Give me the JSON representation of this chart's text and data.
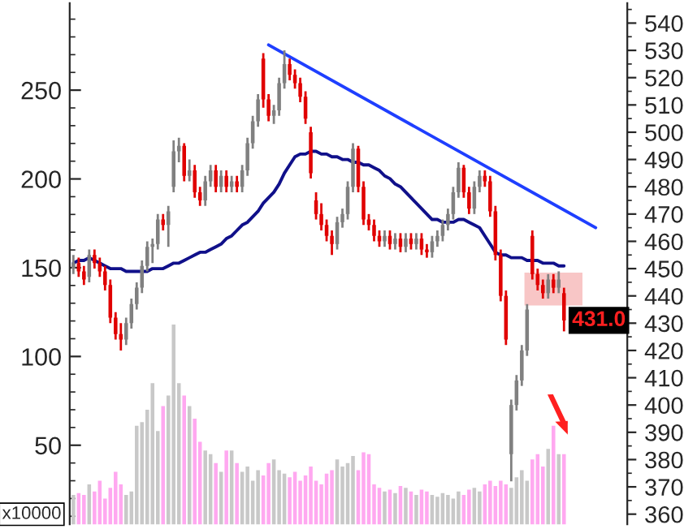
{
  "chart_data": [
    {
      "type": "bar",
      "ylabel": "x10000",
      "categories": [
        null,
        null,
        null,
        null,
        null,
        null,
        null,
        null,
        null,
        null,
        null,
        null,
        null,
        null,
        null,
        null,
        null,
        null,
        null,
        null,
        null,
        null,
        null,
        null,
        null,
        null,
        null,
        null,
        null,
        null,
        null,
        null,
        null,
        null,
        null,
        null,
        null,
        null,
        null,
        null,
        null,
        null,
        null,
        null,
        null,
        null,
        null,
        null,
        null,
        null,
        null,
        null,
        null,
        null,
        null,
        null,
        null,
        null,
        null,
        null,
        null,
        null,
        null,
        null,
        null,
        null,
        null,
        null,
        null,
        null,
        null,
        null,
        null,
        null,
        null,
        null,
        null,
        null,
        null,
        null,
        null,
        null,
        null,
        null,
        null,
        null,
        null,
        null,
        null,
        null,
        null,
        null,
        null,
        null
      ],
      "values": [
        22,
        23,
        22,
        28,
        24,
        30,
        20,
        26,
        35,
        28,
        22,
        24,
        61,
        63,
        70,
        85,
        58,
        72,
        78,
        118,
        85,
        78,
        72,
        65,
        52,
        47,
        45,
        40,
        35,
        47,
        47,
        40,
        35,
        38,
        30,
        36,
        33,
        40,
        42,
        36,
        34,
        32,
        35,
        30,
        33,
        38,
        30,
        28,
        34,
        36,
        42,
        38,
        40,
        44,
        36,
        46,
        45,
        28,
        26,
        24,
        25,
        23,
        27,
        26,
        24,
        22,
        25,
        24,
        22,
        21,
        23,
        22,
        20,
        24,
        22,
        25,
        26,
        24,
        28,
        30,
        27,
        30,
        28,
        26,
        32,
        36,
        30,
        42,
        45,
        38,
        48,
        61,
        45,
        45
      ],
      "colors": [
        "#c8c8c8",
        "#ffa8f0",
        "#ffa8f0",
        "#c8c8c8",
        "#ffa8f0",
        "#ffa8f0",
        "#ffa8f0",
        "#ffa8f0",
        "#ffa8f0",
        "#ffa8f0",
        "#c8c8c8",
        "#c8c8c8",
        "#c8c8c8",
        "#c8c8c8",
        "#c8c8c8",
        "#c8c8c8",
        "#c8c8c8",
        "#ffa8f0",
        "#c8c8c8",
        "#c8c8c8",
        "#c8c8c8",
        "#ffa8f0",
        "#c8c8c8",
        "#ffa8f0",
        "#ffa8f0",
        "#c8c8c8",
        "#c8c8c8",
        "#ffa8f0",
        "#c8c8c8",
        "#ffa8f0",
        "#c8c8c8",
        "#ffa8f0",
        "#c8c8c8",
        "#c8c8c8",
        "#c8c8c8",
        "#c8c8c8",
        "#ffa8f0",
        "#ffa8f0",
        "#c8c8c8",
        "#c8c8c8",
        "#c8c8c8",
        "#ffa8f0",
        "#ffa8f0",
        "#ffa8f0",
        "#ffa8f0",
        "#ffa8f0",
        "#ffa8f0",
        "#ffa8f0",
        "#ffa8f0",
        "#ffa8f0",
        "#c8c8c8",
        "#c8c8c8",
        "#c8c8c8",
        "#c8c8c8",
        "#ffa8f0",
        "#ffa8f0",
        "#ffa8f0",
        "#ffa8f0",
        "#ffa8f0",
        "#c8c8c8",
        "#ffa8f0",
        "#c8c8c8",
        "#ffa8f0",
        "#c8c8c8",
        "#ffa8f0",
        "#c8c8c8",
        "#ffa8f0",
        "#ffa8f0",
        "#c8c8c8",
        "#c8c8c8",
        "#c8c8c8",
        "#c8c8c8",
        "#c8c8c8",
        "#c8c8c8",
        "#ffa8f0",
        "#ffa8f0",
        "#c8c8c8",
        "#c8c8c8",
        "#ffa8f0",
        "#ffa8f0",
        "#ffa8f0",
        "#ffa8f0",
        "#ffa8f0",
        "#c8c8c8",
        "#c8c8c8",
        "#c8c8c8",
        "#c8c8c8",
        "#ffa8f0",
        "#ffa8f0",
        "#ffa8f0",
        "#c8c8c8",
        "#ffa8f0",
        "#c8c8c8",
        "#ffa8f0"
      ],
      "ylim": [
        5.5,
        299
      ],
      "yticks": [
        50,
        100,
        150,
        200,
        250
      ],
      "tick_labels": "y",
      "grid": false,
      "legend": false
    },
    {
      "type": "candlestick",
      "categories": [
        null,
        null,
        null,
        null,
        null,
        null,
        null,
        null,
        null,
        null,
        null,
        null,
        null,
        null,
        null,
        null,
        null,
        null,
        null,
        null,
        null,
        null,
        null,
        null,
        null,
        null,
        null,
        null,
        null,
        null,
        null,
        null,
        null,
        null,
        null,
        null,
        null,
        null,
        null,
        null,
        null,
        null,
        null,
        null,
        null,
        null,
        null,
        null,
        null,
        null,
        null,
        null,
        null,
        null,
        null,
        null,
        null,
        null,
        null,
        null,
        null,
        null,
        null,
        null,
        null,
        null,
        null,
        null,
        null,
        null,
        null,
        null,
        null,
        null,
        null,
        null,
        null,
        null,
        null,
        null,
        null,
        null,
        null,
        null,
        null,
        null,
        null,
        null,
        null,
        null,
        null,
        null,
        null,
        null,
        null,
        null,
        null,
        null,
        null,
        null,
        null,
        null,
        null,
        null,
        null,
        null
      ],
      "ohlc": [
        [
          450,
          455,
          448,
          452
        ],
        [
          452,
          454,
          447,
          449
        ],
        [
          449,
          451,
          444,
          446
        ],
        [
          447,
          457,
          445,
          455
        ],
        [
          455,
          457,
          450,
          452
        ],
        [
          452,
          454,
          447,
          449
        ],
        [
          449,
          451,
          442,
          444
        ],
        [
          444,
          446,
          430,
          432
        ],
        [
          432,
          434,
          424,
          426
        ],
        [
          426,
          430,
          420,
          424
        ],
        [
          424,
          432,
          422,
          430
        ],
        [
          430,
          439,
          428,
          437
        ],
        [
          437,
          445,
          435,
          443
        ],
        [
          443,
          453,
          441,
          451
        ],
        [
          451,
          460,
          449,
          458
        ],
        [
          458,
          461,
          452,
          459
        ],
        [
          459,
          470,
          457,
          468
        ],
        [
          468,
          470,
          464,
          466
        ],
        [
          466,
          473,
          458,
          471
        ],
        [
          480,
          497,
          478,
          493
        ],
        [
          493,
          498,
          489,
          495
        ],
        [
          495,
          496,
          482,
          484
        ],
        [
          484,
          490,
          482,
          486
        ],
        [
          486,
          488,
          476,
          478
        ],
        [
          478,
          480,
          473,
          475
        ],
        [
          475,
          484,
          473,
          482
        ],
        [
          482,
          488,
          480,
          486
        ],
        [
          486,
          488,
          478,
          480
        ],
        [
          480,
          486,
          478,
          484
        ],
        [
          484,
          486,
          478,
          480
        ],
        [
          480,
          484,
          478,
          482
        ],
        [
          482,
          484,
          478,
          480
        ],
        [
          480,
          488,
          478,
          486
        ],
        [
          486,
          498,
          484,
          496
        ],
        [
          496,
          506,
          494,
          504
        ],
        [
          504,
          514,
          502,
          512
        ],
        [
          527,
          529,
          509,
          512
        ],
        [
          512,
          514,
          504,
          506
        ],
        [
          506,
          510,
          503,
          508
        ],
        [
          508,
          520,
          506,
          518
        ],
        [
          518,
          530,
          516,
          525
        ],
        [
          525,
          527,
          519,
          521
        ],
        [
          521,
          523,
          516,
          518
        ],
        [
          518,
          520,
          511,
          513
        ],
        [
          513,
          515,
          503,
          505
        ],
        [
          500,
          502,
          483,
          485
        ],
        [
          475,
          478,
          468,
          470
        ],
        [
          470,
          474,
          464,
          466
        ],
        [
          466,
          468,
          460,
          462
        ],
        [
          462,
          464,
          455,
          459
        ],
        [
          459,
          469,
          457,
          467
        ],
        [
          467,
          472,
          465,
          470
        ],
        [
          470,
          482,
          468,
          480
        ],
        [
          480,
          496,
          478,
          494
        ],
        [
          494,
          495,
          478,
          480
        ],
        [
          480,
          482,
          466,
          468
        ],
        [
          468,
          470,
          464,
          466
        ],
        [
          466,
          468,
          460,
          462
        ],
        [
          462,
          464,
          458,
          460
        ],
        [
          460,
          464,
          458,
          462
        ],
        [
          462,
          464,
          457,
          459
        ],
        [
          459,
          463,
          457,
          461
        ],
        [
          461,
          463,
          456,
          458
        ],
        [
          458,
          463,
          456,
          461
        ],
        [
          461,
          463,
          457,
          459
        ],
        [
          459,
          463,
          457,
          461
        ],
        [
          461,
          463,
          455,
          457
        ],
        [
          457,
          459,
          454,
          456
        ],
        [
          456,
          462,
          454,
          460
        ],
        [
          460,
          464,
          458,
          462
        ],
        [
          462,
          468,
          460,
          466
        ],
        [
          466,
          472,
          464,
          470
        ],
        [
          470,
          480,
          468,
          478
        ],
        [
          478,
          489,
          476,
          487
        ],
        [
          487,
          488,
          476,
          478
        ],
        [
          478,
          480,
          470,
          472
        ],
        [
          472,
          482,
          470,
          480
        ],
        [
          480,
          486,
          478,
          484
        ],
        [
          484,
          486,
          480,
          482
        ],
        [
          482,
          484,
          469,
          471
        ],
        [
          471,
          473,
          453,
          455
        ],
        [
          455,
          457,
          438,
          440
        ],
        [
          440,
          442,
          422,
          424
        ],
        [
          382,
          402,
          372,
          400
        ],
        [
          400,
          411,
          398,
          409
        ],
        [
          409,
          422,
          407,
          420
        ],
        [
          420,
          437,
          418,
          435
        ],
        [
          462,
          464,
          446,
          448
        ],
        [
          448,
          450,
          442,
          444
        ],
        [
          444,
          446,
          439,
          441
        ],
        [
          441,
          448,
          439,
          446
        ],
        [
          446,
          448,
          441,
          443
        ],
        [
          443,
          449,
          441,
          446
        ],
        [
          441,
          443,
          427,
          431
        ],
        null,
        null,
        null,
        null,
        null,
        null,
        null,
        null,
        null,
        null,
        null,
        null
      ],
      "colors": [
        "#808080",
        "#e00000",
        "#e00000",
        "#808080",
        "#e00000",
        "#e00000",
        "#e00000",
        "#e00000",
        "#e00000",
        "#e00000",
        "#808080",
        "#808080",
        "#808080",
        "#808080",
        "#808080",
        "#808080",
        "#808080",
        "#e00000",
        "#808080",
        "#808080",
        "#808080",
        "#e00000",
        "#808080",
        "#e00000",
        "#e00000",
        "#808080",
        "#808080",
        "#e00000",
        "#808080",
        "#e00000",
        "#808080",
        "#e00000",
        "#808080",
        "#808080",
        "#808080",
        "#808080",
        "#e00000",
        "#e00000",
        "#808080",
        "#808080",
        "#808080",
        "#e00000",
        "#e00000",
        "#e00000",
        "#e00000",
        "#e00000",
        "#e00000",
        "#e00000",
        "#e00000",
        "#e00000",
        "#808080",
        "#808080",
        "#808080",
        "#808080",
        "#e00000",
        "#e00000",
        "#e00000",
        "#e00000",
        "#e00000",
        "#808080",
        "#e00000",
        "#808080",
        "#e00000",
        "#808080",
        "#e00000",
        "#808080",
        "#e00000",
        "#e00000",
        "#808080",
        "#808080",
        "#808080",
        "#808080",
        "#808080",
        "#808080",
        "#e00000",
        "#e00000",
        "#808080",
        "#808080",
        "#e00000",
        "#e00000",
        "#e00000",
        "#e00000",
        "#e00000",
        "#808080",
        "#808080",
        "#808080",
        "#808080",
        "#e00000",
        "#e00000",
        "#e00000",
        "#808080",
        "#e00000",
        "#808080",
        "#e00000",
        null,
        null,
        null,
        null,
        null,
        null,
        null,
        null,
        null,
        null,
        null,
        null
      ],
      "series": [
        {
          "type": "line",
          "color": "#10108a",
          "values": [
            452,
            453,
            453,
            454,
            453,
            452,
            451,
            450,
            450,
            450,
            449,
            449,
            449,
            449,
            449,
            450,
            450,
            450,
            451,
            452,
            452,
            453,
            454,
            455,
            456,
            456,
            457,
            458,
            459,
            461,
            462,
            464,
            466,
            467,
            469,
            471,
            474,
            476,
            478,
            481,
            485,
            488,
            491,
            492,
            492,
            493,
            493,
            492,
            492,
            491,
            491,
            490,
            490,
            489,
            489,
            488,
            488,
            487,
            486,
            484,
            483,
            481,
            480,
            478,
            476,
            474,
            472,
            470,
            468,
            468,
            467,
            467,
            467,
            468,
            468,
            467,
            466,
            465,
            462,
            459,
            456,
            455,
            455,
            454,
            454,
            454,
            453,
            453,
            453,
            452,
            452,
            452,
            451,
            451,
            null,
            null,
            null,
            null,
            null,
            null,
            null,
            null,
            null,
            null,
            null,
            null
          ]
        },
        {
          "type": "line",
          "color": "#1f3fff",
          "values": [
            null,
            null,
            null,
            null,
            null,
            null,
            null,
            null,
            null,
            null,
            null,
            null,
            null,
            null,
            null,
            null,
            null,
            null,
            null,
            null,
            null,
            null,
            null,
            null,
            null,
            null,
            null,
            null,
            null,
            null,
            null,
            null,
            null,
            null,
            null,
            null,
            null,
            532,
            null,
            null,
            null,
            null,
            null,
            null,
            null,
            null,
            null,
            null,
            null,
            null,
            null,
            null,
            null,
            null,
            null,
            null,
            null,
            null,
            null,
            null,
            null,
            null,
            null,
            null,
            null,
            null,
            null,
            null,
            null,
            null,
            null,
            null,
            null,
            null,
            null,
            null,
            null,
            null,
            null,
            null,
            null,
            null,
            null,
            null,
            null,
            null,
            null,
            null,
            null,
            null,
            null,
            null,
            null,
            null,
            null,
            null,
            null,
            null,
            null,
            465,
            null,
            null,
            null,
            null,
            null,
            null
          ]
        }
      ],
      "bands": [
        {
          "axis": "y",
          "from": 436.5,
          "to": 448.5,
          "color": "#f4a0a0"
        }
      ],
      "annotations": [
        {
          "text": "431.0",
          "y": 431
        }
      ],
      "ylim": [
        356.3,
        547.3
      ],
      "yticks": [
        360,
        370,
        380,
        390,
        400,
        410,
        420,
        430,
        440,
        450,
        460,
        470,
        480,
        490,
        500,
        510,
        520,
        530,
        540
      ],
      "tick_labels": "y",
      "grid": false,
      "legend": false
    }
  ]
}
